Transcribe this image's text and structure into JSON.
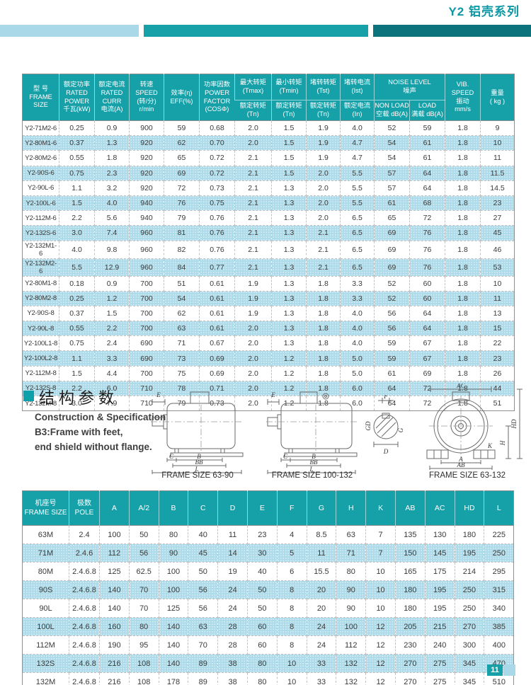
{
  "page": {
    "title": "Y2 铝壳系列",
    "page_number": "11"
  },
  "colors": {
    "accent_teal": "#16a0a8",
    "accent_dark_teal": "#0c737c",
    "accent_light_blue": "#a9d9e8",
    "row_alt": "#aedbe9",
    "title_teal": "#0d98a6"
  },
  "spec_table": {
    "h_frame": "型 号\nFRAME\nSIZE",
    "h_power": "额定功率\nRATED\nPOWER\n千瓦(kW)",
    "h_curr": "额定电流\nRATED\nCURR\n电流(A)",
    "h_speed": "转速\nSPEED\n(转/分)\nr/min",
    "h_eff": "效率(η)\nEFF(%)",
    "h_pf": "功率因数\nPOWER\nFACTOR\n(COSΦ)",
    "h_tmax_top": "最大转矩\n(Tmax)",
    "h_tmax_bot": "额定转矩\n(Tn)",
    "h_tmin_top": "最小转矩\n(Tmin)",
    "h_tmin_bot": "额定转矩\n(Tn)",
    "h_tst_top": "堵转转矩\n(Tst)",
    "h_tst_bot": "额定转矩\n(Tn)",
    "h_ist_top": "堵转电流\n(Ist)",
    "h_ist_bot": "额定电流\n(In)",
    "h_noise": "NOISE LEVEL\n噪声",
    "h_nonload": "NON LOAD\n空载 dB(A)",
    "h_load": "LOAD\n满载 dB(A)",
    "h_vib": "VIB.\nSPEED\n振动\nmm/s",
    "h_weight": "重量\n( kg )",
    "rows": [
      [
        "Y2-71M2-6",
        "0.25",
        "0.9",
        "900",
        "59",
        "0.68",
        "2.0",
        "1.5",
        "1.9",
        "4.0",
        "52",
        "59",
        "1.8",
        "9"
      ],
      [
        "Y2-80M1-6",
        "0.37",
        "1.3",
        "920",
        "62",
        "0.70",
        "2.0",
        "1.5",
        "1.9",
        "4.7",
        "54",
        "61",
        "1.8",
        "10"
      ],
      [
        "Y2-80M2-6",
        "0.55",
        "1.8",
        "920",
        "65",
        "0.72",
        "2.1",
        "1.5",
        "1.9",
        "4.7",
        "54",
        "61",
        "1.8",
        "11"
      ],
      [
        "Y2-90S-6",
        "0.75",
        "2.3",
        "920",
        "69",
        "0.72",
        "2.1",
        "1.5",
        "2.0",
        "5.5",
        "57",
        "64",
        "1.8",
        "11.5"
      ],
      [
        "Y2-90L-6",
        "1.1",
        "3.2",
        "920",
        "72",
        "0.73",
        "2.1",
        "1.3",
        "2.0",
        "5.5",
        "57",
        "64",
        "1.8",
        "14.5"
      ],
      [
        "Y2-100L-6",
        "1.5",
        "4.0",
        "940",
        "76",
        "0.75",
        "2.1",
        "1.3",
        "2.0",
        "5.5",
        "61",
        "68",
        "1.8",
        "23"
      ],
      [
        "Y2-112M-6",
        "2.2",
        "5.6",
        "940",
        "79",
        "0.76",
        "2.1",
        "1.3",
        "2.0",
        "6.5",
        "65",
        "72",
        "1.8",
        "27"
      ],
      [
        "Y2-132S-6",
        "3.0",
        "7.4",
        "960",
        "81",
        "0.76",
        "2.1",
        "1.3",
        "2.1",
        "6.5",
        "69",
        "76",
        "1.8",
        "45"
      ],
      [
        "Y2-132M1-6",
        "4.0",
        "9.8",
        "960",
        "82",
        "0.76",
        "2.1",
        "1.3",
        "2.1",
        "6.5",
        "69",
        "76",
        "1.8",
        "46"
      ],
      [
        "Y2-132M2-6",
        "5.5",
        "12.9",
        "960",
        "84",
        "0.77",
        "2.1",
        "1.3",
        "2.1",
        "6.5",
        "69",
        "76",
        "1.8",
        "53"
      ],
      [
        "Y2-80M1-8",
        "0.18",
        "0.9",
        "700",
        "51",
        "0.61",
        "1.9",
        "1.3",
        "1.8",
        "3.3",
        "52",
        "60",
        "1.8",
        "10"
      ],
      [
        "Y2-80M2-8",
        "0.25",
        "1.2",
        "700",
        "54",
        "0.61",
        "1.9",
        "1.3",
        "1.8",
        "3.3",
        "52",
        "60",
        "1.8",
        "11"
      ],
      [
        "Y2-90S-8",
        "0.37",
        "1.5",
        "700",
        "62",
        "0.61",
        "1.9",
        "1.3",
        "1.8",
        "4.0",
        "56",
        "64",
        "1.8",
        "13"
      ],
      [
        "Y2-90L-8",
        "0.55",
        "2.2",
        "700",
        "63",
        "0.61",
        "2.0",
        "1.3",
        "1.8",
        "4.0",
        "56",
        "64",
        "1.8",
        "15"
      ],
      [
        "Y2-100L1-8",
        "0.75",
        "2.4",
        "690",
        "71",
        "0.67",
        "2.0",
        "1.3",
        "1.8",
        "4.0",
        "59",
        "67",
        "1.8",
        "22"
      ],
      [
        "Y2-100L2-8",
        "1.1",
        "3.3",
        "690",
        "73",
        "0.69",
        "2.0",
        "1.2",
        "1.8",
        "5.0",
        "59",
        "67",
        "1.8",
        "23"
      ],
      [
        "Y2-112M-8",
        "1.5",
        "4.4",
        "700",
        "75",
        "0.69",
        "2.0",
        "1.2",
        "1.8",
        "5.0",
        "61",
        "69",
        "1.8",
        "26"
      ],
      [
        "Y2-132S-8",
        "2.2",
        "6.0",
        "710",
        "78",
        "0.71",
        "2.0",
        "1.2",
        "1.8",
        "6.0",
        "64",
        "72",
        "1.8",
        "44"
      ],
      [
        "Y2-132M-8",
        "3.0",
        "7.9",
        "710",
        "79",
        "0.73",
        "2.0",
        "1.2",
        "1.8",
        "6.0",
        "64",
        "72",
        "1.8",
        "51"
      ]
    ]
  },
  "construction": {
    "title": "结构参数",
    "desc": "Construction & Specification\nB3:Frame with feet,\nend shield without flange.",
    "caption_1": "FRAME SIZE 63-90",
    "caption_2": "FRAME SIZE 100-132",
    "caption_3": "FRAME SIZE 63-132",
    "labels_side": {
      "e": "E",
      "c": "C",
      "b": "B",
      "bb": "BB",
      "l": "L"
    },
    "labels_shaft": {
      "f": "F",
      "gd": "GD",
      "g": "G",
      "d": "D"
    },
    "labels_front": {
      "ac": "AC",
      "hd": "HD",
      "h": "H",
      "k": "K",
      "a": "A",
      "ab": "AB"
    }
  },
  "dim_table": {
    "h_frame": "机座号\nFRAME SIZE",
    "h_pole": "极数\nPOLE",
    "dims": [
      "A",
      "A/2",
      "B",
      "C",
      "D",
      "E",
      "F",
      "G",
      "H",
      "K",
      "AB",
      "AC",
      "HD",
      "L"
    ],
    "rows": [
      [
        "63M",
        "2.4",
        "100",
        "50",
        "80",
        "40",
        "11",
        "23",
        "4",
        "8.5",
        "63",
        "7",
        "135",
        "130",
        "180",
        "225"
      ],
      [
        "71M",
        "2.4.6",
        "112",
        "56",
        "90",
        "45",
        "14",
        "30",
        "5",
        "11",
        "71",
        "7",
        "150",
        "145",
        "195",
        "250"
      ],
      [
        "80M",
        "2.4.6.8",
        "125",
        "62.5",
        "100",
        "50",
        "19",
        "40",
        "6",
        "15.5",
        "80",
        "10",
        "165",
        "175",
        "214",
        "295"
      ],
      [
        "90S",
        "2.4.6.8",
        "140",
        "70",
        "100",
        "56",
        "24",
        "50",
        "8",
        "20",
        "90",
        "10",
        "180",
        "195",
        "250",
        "315"
      ],
      [
        "90L",
        "2.4.6.8",
        "140",
        "70",
        "125",
        "56",
        "24",
        "50",
        "8",
        "20",
        "90",
        "10",
        "180",
        "195",
        "250",
        "340"
      ],
      [
        "100L",
        "2.4.6.8",
        "160",
        "80",
        "140",
        "63",
        "28",
        "60",
        "8",
        "24",
        "100",
        "12",
        "205",
        "215",
        "270",
        "385"
      ],
      [
        "112M",
        "2.4.6.8",
        "190",
        "95",
        "140",
        "70",
        "28",
        "60",
        "8",
        "24",
        "112",
        "12",
        "230",
        "240",
        "300",
        "400"
      ],
      [
        "132S",
        "2.4.6.8",
        "216",
        "108",
        "140",
        "89",
        "38",
        "80",
        "10",
        "33",
        "132",
        "12",
        "270",
        "275",
        "345",
        "470"
      ],
      [
        "132M",
        "2.4.6.8",
        "216",
        "108",
        "178",
        "89",
        "38",
        "80",
        "10",
        "33",
        "132",
        "12",
        "270",
        "275",
        "345",
        "510"
      ]
    ]
  }
}
